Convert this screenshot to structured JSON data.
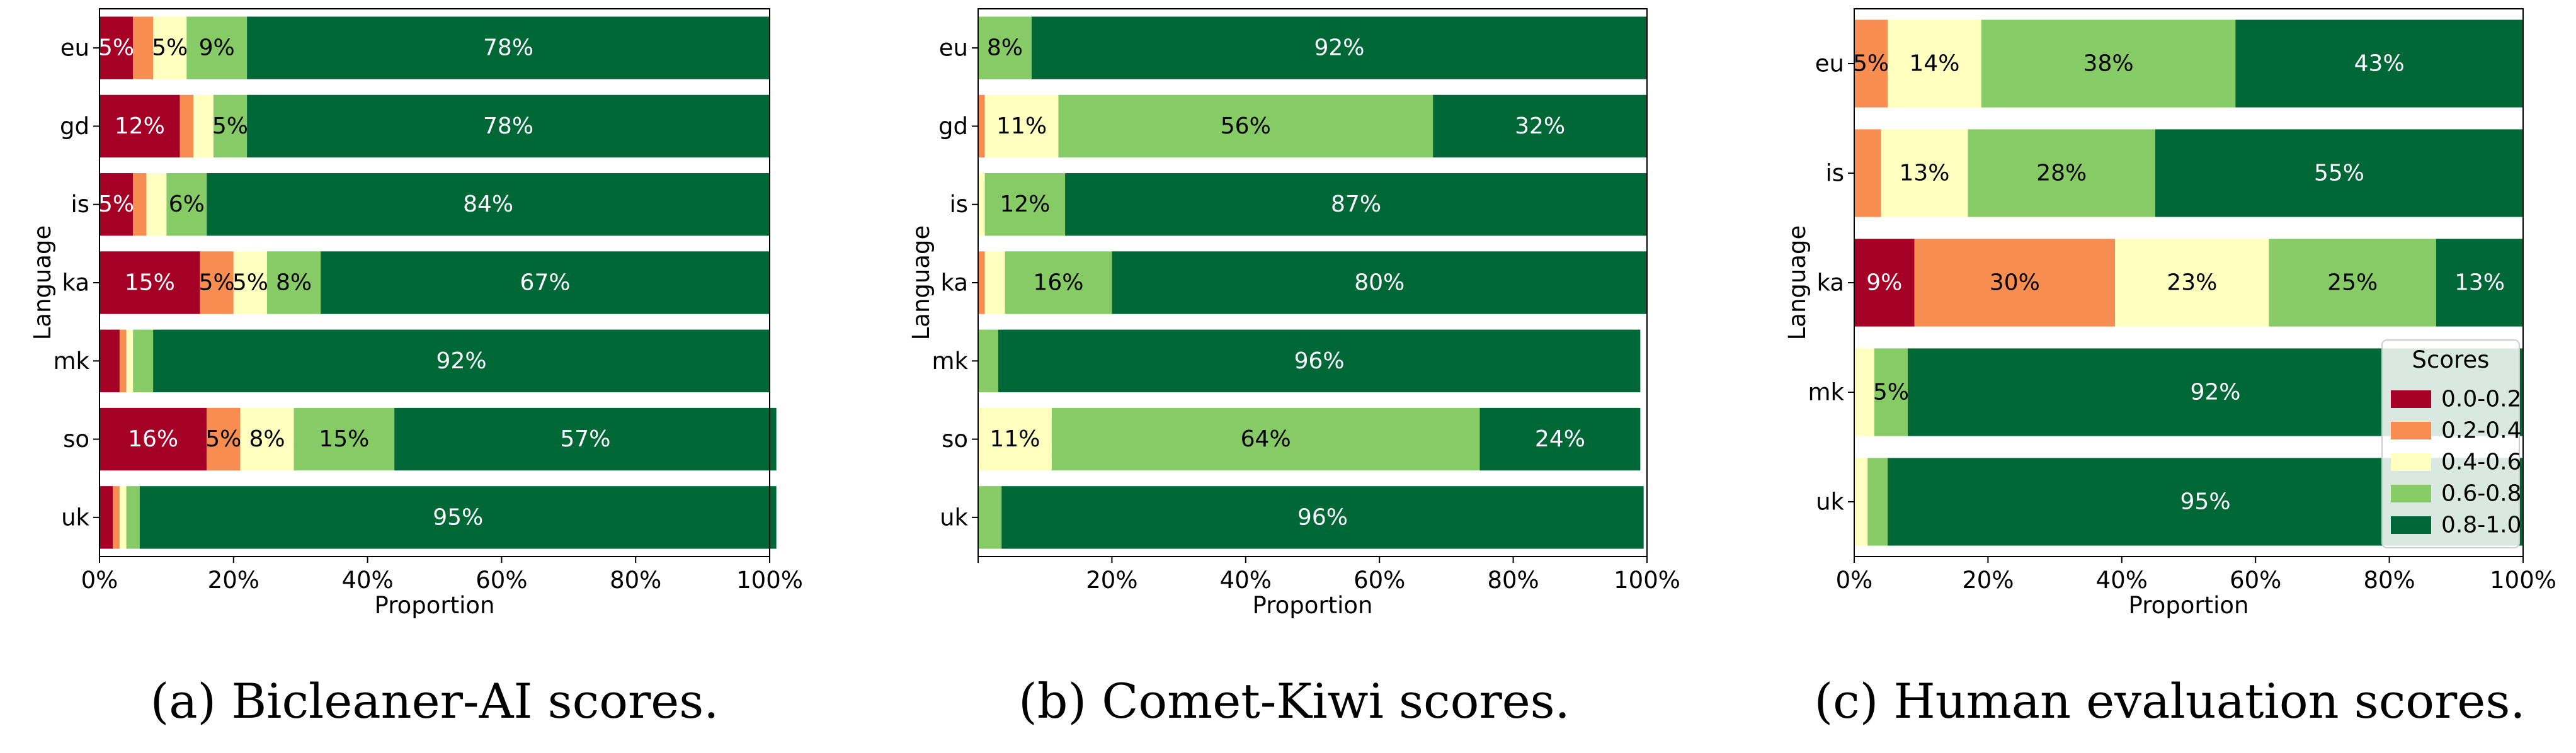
{
  "colors": {
    "0.0-0.2": "#a50026",
    "0.2-0.4": "#f88d52",
    "0.4-0.6": "#ffffbf",
    "0.6-0.8": "#86cb66",
    "0.8-1.0": "#006837"
  },
  "legend": {
    "title": "Scores",
    "entries": [
      "0.0-0.2",
      "0.2-0.4",
      "0.4-0.6",
      "0.6-0.8",
      "0.8-1.0"
    ]
  },
  "chart_data": [
    {
      "type": "bar",
      "orientation": "horizontal-stacked",
      "caption": "(a) Bicleaner-AI scores.",
      "xlabel": "Proportion",
      "ylabel": "Language",
      "xlim": [
        0,
        1
      ],
      "xticks": [
        "0%",
        "20%",
        "40%",
        "60%",
        "80%",
        "100%"
      ],
      "categories": [
        "eu",
        "gd",
        "is",
        "ka",
        "mk",
        "so",
        "uk"
      ],
      "series": [
        {
          "name": "0.0-0.2",
          "values": [
            0.05,
            0.12,
            0.05,
            0.15,
            0.03,
            0.16,
            0.02
          ]
        },
        {
          "name": "0.2-0.4",
          "values": [
            0.03,
            0.02,
            0.02,
            0.05,
            0.01,
            0.05,
            0.01
          ]
        },
        {
          "name": "0.4-0.6",
          "values": [
            0.05,
            0.03,
            0.03,
            0.05,
            0.01,
            0.08,
            0.01
          ]
        },
        {
          "name": "0.6-0.8",
          "values": [
            0.09,
            0.05,
            0.06,
            0.08,
            0.03,
            0.15,
            0.02
          ]
        },
        {
          "name": "0.8-1.0",
          "values": [
            0.78,
            0.78,
            0.84,
            0.67,
            0.92,
            0.57,
            0.95
          ]
        }
      ]
    },
    {
      "type": "bar",
      "orientation": "horizontal-stacked",
      "caption": "(b) Comet-Kiwi scores.",
      "xlabel": "Proportion",
      "ylabel": "Language",
      "xlim": [
        0,
        1
      ],
      "xticks": [
        "",
        "20%",
        "40%",
        "60%",
        "80%",
        "100%"
      ],
      "categories": [
        "eu",
        "gd",
        "is",
        "ka",
        "mk",
        "so",
        "uk"
      ],
      "series": [
        {
          "name": "0.0-0.2",
          "values": [
            0,
            0,
            0,
            0,
            0,
            0,
            0
          ]
        },
        {
          "name": "0.2-0.4",
          "values": [
            0,
            0.01,
            0,
            0.01,
            0,
            0,
            0
          ]
        },
        {
          "name": "0.4-0.6",
          "values": [
            0,
            0.11,
            0.01,
            0.03,
            0,
            0.11,
            0
          ]
        },
        {
          "name": "0.6-0.8",
          "values": [
            0.08,
            0.56,
            0.12,
            0.16,
            0.03,
            0.64,
            0.035
          ]
        },
        {
          "name": "0.8-1.0",
          "values": [
            0.92,
            0.32,
            0.87,
            0.8,
            0.96,
            0.24,
            0.96
          ]
        }
      ]
    },
    {
      "type": "bar",
      "orientation": "horizontal-stacked",
      "caption": "(c) Human evaluation scores.",
      "xlabel": "Proportion",
      "ylabel": "Language",
      "xlim": [
        0,
        1
      ],
      "xticks": [
        "0%",
        "20%",
        "40%",
        "60%",
        "80%",
        "100%"
      ],
      "categories": [
        "eu",
        "is",
        "ka",
        "mk",
        "uk"
      ],
      "series": [
        {
          "name": "0.0-0.2",
          "values": [
            0,
            0,
            0.09,
            0,
            0
          ]
        },
        {
          "name": "0.2-0.4",
          "values": [
            0.05,
            0.04,
            0.3,
            0,
            0
          ]
        },
        {
          "name": "0.4-0.6",
          "values": [
            0.14,
            0.13,
            0.23,
            0.03,
            0.02
          ]
        },
        {
          "name": "0.6-0.8",
          "values": [
            0.38,
            0.28,
            0.25,
            0.05,
            0.03
          ]
        },
        {
          "name": "0.8-1.0",
          "values": [
            0.43,
            0.55,
            0.13,
            0.92,
            0.95
          ]
        }
      ]
    }
  ]
}
